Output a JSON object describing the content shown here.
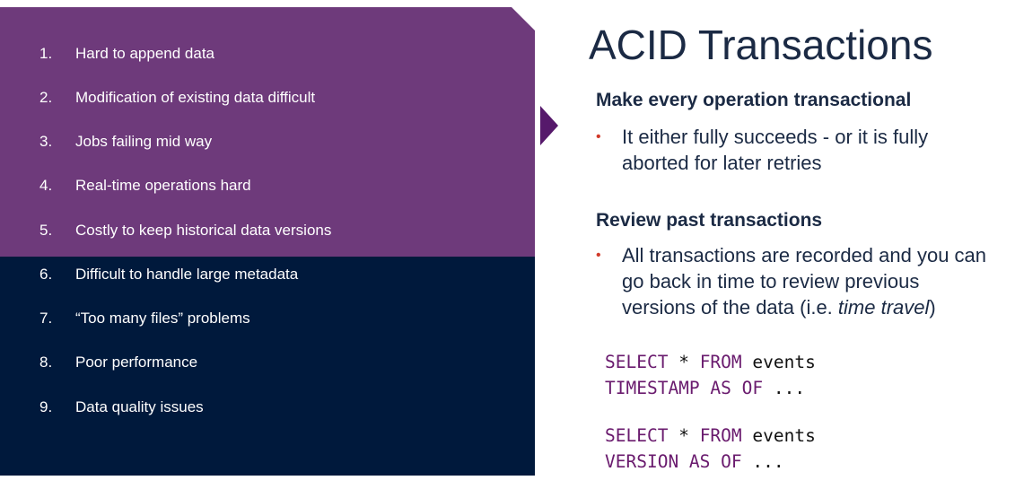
{
  "issues": [
    {
      "num": "1.",
      "text": "Hard to append data"
    },
    {
      "num": "2.",
      "text": "Modification of existing data difficult"
    },
    {
      "num": "3.",
      "text": "Jobs failing mid way"
    },
    {
      "num": "4.",
      "text": "Real-time operations hard"
    },
    {
      "num": "5.",
      "text": "Costly to keep historical data versions"
    },
    {
      "num": "6.",
      "text": "Difficult to handle large metadata"
    },
    {
      "num": "7.",
      "text": "“Too many files” problems"
    },
    {
      "num": "8.",
      "text": "Poor performance"
    },
    {
      "num": "9.",
      "text": "Data quality issues"
    }
  ],
  "title": "ACID Transactions",
  "sections": [
    {
      "heading": "Make every operation transactional",
      "bullet_lines": [
        "It either fully succeeds - or it is fully",
        "aborted for later retries"
      ]
    },
    {
      "heading": "Review past transactions",
      "bullet_lines": [
        "All transactions are recorded and you can",
        "go back in time to review previous"
      ],
      "bullet_line3_prefix": "versions of the data (i.e. ",
      "bullet_line3_italic": "time travel",
      "bullet_line3_suffix": ")"
    }
  ],
  "code": [
    {
      "kw1": "SELECT",
      "mid1": " * ",
      "kw2": "FROM",
      "rest": " events"
    },
    {
      "kw1": "TIMESTAMP AS OF",
      "rest": " ..."
    },
    {
      "kw1": "SELECT",
      "mid1": " * ",
      "kw2": "FROM",
      "rest": " events"
    },
    {
      "kw1": "VERSION AS OF",
      "rest": " ..."
    }
  ],
  "colors": {
    "purple_panel": "#6e3a7b",
    "navy_panel": "#00193c",
    "bullet_dot": "#d13a2a",
    "code_keyword": "#6a1b6e"
  }
}
